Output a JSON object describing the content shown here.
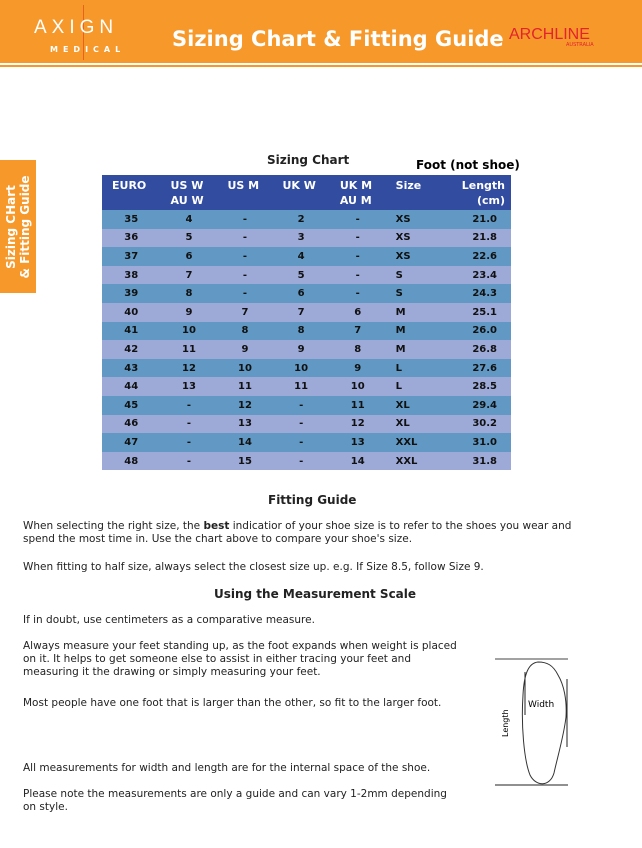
{
  "header": {
    "brand_left": "AXIGN",
    "brand_left_sub": "MEDICAL",
    "title": "Sizing Chart & Fitting Guide",
    "brand_right": "ARCHLINE",
    "brand_right_sub": "AUSTRALIA",
    "color": "#F7982A"
  },
  "side_tab": {
    "line1": "Sizing CHart",
    "line2": "& Fitting Guide"
  },
  "chart": {
    "title": "Sizing Chart",
    "note": "Foot (not shoe)",
    "columns": [
      [
        "EURO",
        ""
      ],
      [
        "US W",
        "AU W"
      ],
      [
        "US M",
        ""
      ],
      [
        "UK W",
        ""
      ],
      [
        "UK M",
        "AU M"
      ],
      [
        "Size",
        ""
      ],
      [
        "Length",
        "(cm)"
      ]
    ],
    "rows": [
      [
        "35",
        "4",
        "-",
        "2",
        "-",
        "XS",
        "21.0"
      ],
      [
        "36",
        "5",
        "-",
        "3",
        "-",
        "XS",
        "21.8"
      ],
      [
        "37",
        "6",
        "-",
        "4",
        "-",
        "XS",
        "22.6"
      ],
      [
        "38",
        "7",
        "-",
        "5",
        "-",
        "S",
        "23.4"
      ],
      [
        "39",
        "8",
        "-",
        "6",
        "-",
        "S",
        "24.3"
      ],
      [
        "40",
        "9",
        "7",
        "7",
        "6",
        "M",
        "25.1"
      ],
      [
        "41",
        "10",
        "8",
        "8",
        "7",
        "M",
        "26.0"
      ],
      [
        "42",
        "11",
        "9",
        "9",
        "8",
        "M",
        "26.8"
      ],
      [
        "43",
        "12",
        "10",
        "10",
        "9",
        "L",
        "27.6"
      ],
      [
        "44",
        "13",
        "11",
        "11",
        "10",
        "L",
        "28.5"
      ],
      [
        "45",
        "-",
        "12",
        "-",
        "11",
        "XL",
        "29.4"
      ],
      [
        "46",
        "-",
        "13",
        "-",
        "12",
        "XL",
        "30.2"
      ],
      [
        "47",
        "-",
        "14",
        "-",
        "13",
        "XXL",
        "31.0"
      ],
      [
        "48",
        "-",
        "15",
        "-",
        "14",
        "XXL",
        "31.8"
      ]
    ],
    "colors": {
      "header": "#324CA0",
      "dark_row": "#6199C4",
      "light_row": "#9DAAD8"
    }
  },
  "fitting": {
    "heading": "Fitting Guide",
    "p1_before": "When selecting the right size, the ",
    "p1_bold": "best",
    "p1_after": " indicatior of your shoe size is to refer to the shoes you wear and spend the most time in. Use the chart above to compare your shoe's size.",
    "p2": "When fitting to half size, always select the closest size up. e.g. If Size 8.5, follow Size 9."
  },
  "measure": {
    "heading": "Using the Measurement Scale",
    "p1": "If in doubt, use centimeters as a comparative measure.",
    "p2": "Always measure your feet standing up, as the foot expands when weight is placed on it. It helps to get someone else to assist in either tracing your feet and measuring it the drawing or simply measuring your feet.",
    "p3": "Most people have one foot that is larger than the other, so fit to the larger foot.",
    "p4": "All measurements for width and length are for the internal space of the shoe.",
    "p5": "Please note the measurements are only a guide and can vary 1-2mm depending on style.",
    "diagram_length": "Length",
    "diagram_width": "Width"
  }
}
